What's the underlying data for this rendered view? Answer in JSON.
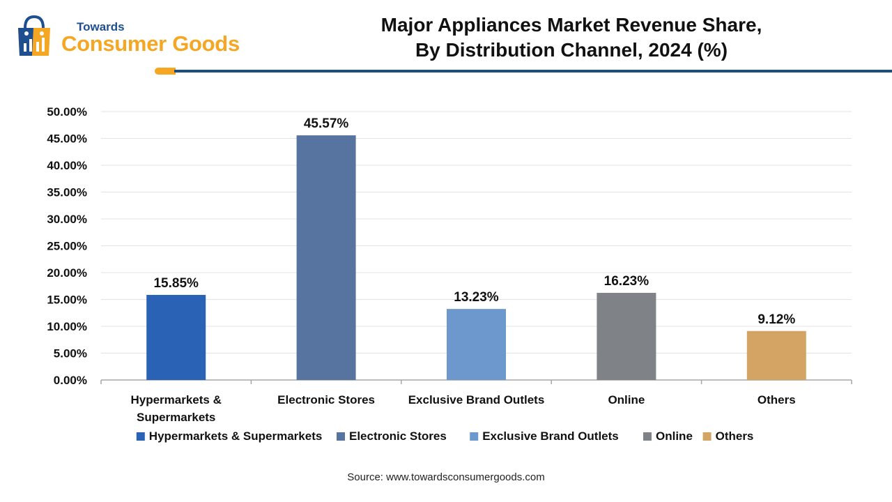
{
  "brand": {
    "top": "Towards",
    "main": "Consumer Goods",
    "icon": "shopping-bag-icon",
    "colors": {
      "navy": "#1f4f8f",
      "orange": "#f5a623"
    }
  },
  "header": {
    "title_line1": "Major Appliances Market Revenue Share,",
    "title_line2": "By Distribution Channel, 2024 (%)"
  },
  "chart_data": {
    "type": "bar",
    "title": "Major Appliances Market Revenue Share, By Distribution Channel, 2024 (%)",
    "xlabel": "",
    "ylabel": "",
    "ylim": [
      0,
      50
    ],
    "yticks": [
      "0.00%",
      "5.00%",
      "10.00%",
      "15.00%",
      "20.00%",
      "25.00%",
      "30.00%",
      "35.00%",
      "40.00%",
      "45.00%",
      "50.00%"
    ],
    "grid": true,
    "legend_position": "bottom",
    "categories": [
      "Hypermarkets & Supermarkets",
      "Electronic Stores",
      "Exclusive Brand Outlets",
      "Online",
      "Others"
    ],
    "values": [
      15.85,
      45.57,
      13.23,
      16.23,
      9.12
    ],
    "data_labels": [
      "15.85%",
      "45.57%",
      "13.23%",
      "16.23%",
      "9.12%"
    ],
    "colors": [
      "#2a62b6",
      "#56749f",
      "#6d98ce",
      "#7f8388",
      "#d4a465"
    ]
  },
  "source": "Source: www.towardsconsumergoods.com"
}
